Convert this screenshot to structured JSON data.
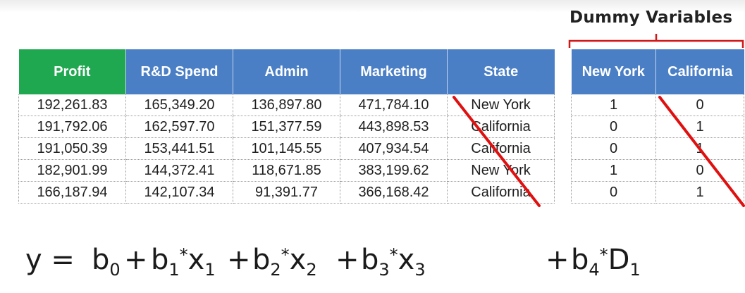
{
  "dummy_label": "Dummy Variables",
  "main_table": {
    "headers": [
      "Profit",
      "R&D Spend",
      "Admin",
      "Marketing",
      "State"
    ],
    "rows": [
      [
        "192,261.83",
        "165,349.20",
        "136,897.80",
        "471,784.10",
        "New York"
      ],
      [
        "191,792.06",
        "162,597.70",
        "151,377.59",
        "443,898.53",
        "California"
      ],
      [
        "191,050.39",
        "153,441.51",
        "101,145.55",
        "407,934.54",
        "California"
      ],
      [
        "182,901.99",
        "144,372.41",
        "118,671.85",
        "383,199.62",
        "New York"
      ],
      [
        "166,187.94",
        "142,107.34",
        "91,391.77",
        "366,168.42",
        "California"
      ]
    ]
  },
  "dummy_table": {
    "headers": [
      "New York",
      "California"
    ],
    "rows": [
      [
        "1",
        "0"
      ],
      [
        "0",
        "1"
      ],
      [
        "0",
        "1"
      ],
      [
        "1",
        "0"
      ],
      [
        "0",
        "1"
      ]
    ]
  },
  "equation": {
    "lhs": "y",
    "eq": "=",
    "plus": "+",
    "star": "*",
    "b": "b",
    "x": "x",
    "D": "D",
    "b0_sub": "0",
    "b1_sub": "1",
    "x1_sub": "1",
    "b2_sub": "2",
    "x2_sub": "2",
    "b3_sub": "3",
    "x3_sub": "3",
    "b4_sub": "4",
    "D1_sub": "1"
  },
  "colors": {
    "profit_header": "#1fa84f",
    "header_blue": "#4a7fc6",
    "strike_line": "#e01010",
    "bracket": "#d01818"
  }
}
